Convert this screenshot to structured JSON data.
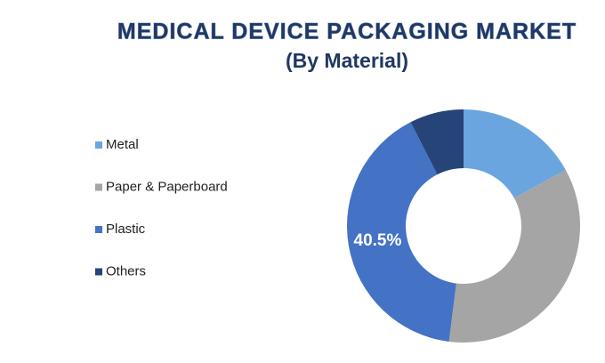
{
  "chart_data": {
    "type": "donut",
    "title": "MEDICAL DEVICE PACKAGING MARKET",
    "subtitle": "(By Material)",
    "categories": [
      "Metal",
      "Paper & Paperboard",
      "Plastic",
      "Others"
    ],
    "values": [
      17,
      35,
      40.5,
      7.5
    ],
    "value_labels": [
      null,
      null,
      "40.5%",
      null
    ],
    "colors": [
      "#6aa5e0",
      "#a5a5a5",
      "#4472c4",
      "#264478"
    ],
    "legend": "left"
  }
}
